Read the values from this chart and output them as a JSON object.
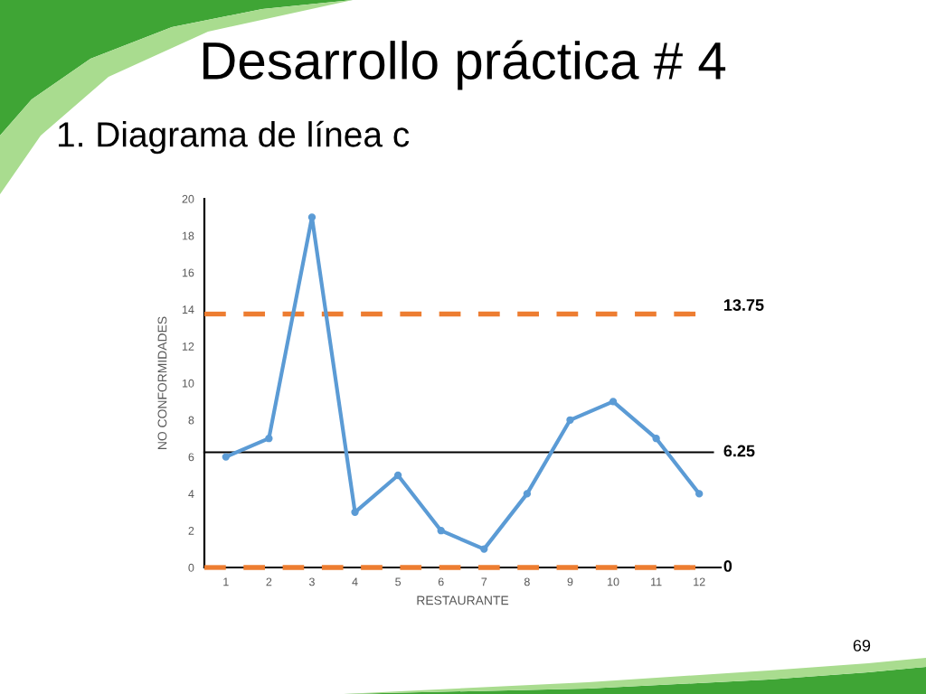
{
  "chart_data": {
    "type": "line",
    "title": "Desarrollo práctica # 4",
    "subtitle": "1. Diagrama de línea c",
    "xlabel": "RESTAURANTE",
    "ylabel": "NO CONFORMIDADES",
    "categories": [
      "1",
      "2",
      "3",
      "4",
      "5",
      "6",
      "7",
      "8",
      "9",
      "10",
      "11",
      "12"
    ],
    "series": [
      {
        "color": "#5b9bd5",
        "values": [
          6,
          7,
          19,
          3,
          5,
          2,
          1,
          4,
          8,
          9,
          7,
          4
        ]
      }
    ],
    "ylim": [
      0,
      20
    ],
    "yticks": [
      0,
      2,
      4,
      6,
      8,
      10,
      12,
      14,
      16,
      18,
      20
    ],
    "marker": "circle",
    "line_style": "solid",
    "grid": false,
    "legend": false,
    "ref_lines": [
      {
        "axis": "y",
        "value": 13.75,
        "label": "13.75",
        "color": "#ed7d31",
        "line_style": "dashed"
      },
      {
        "axis": "y",
        "value": 6.25,
        "label": "6.25",
        "color": "#000000",
        "line_style": "solid"
      },
      {
        "axis": "y",
        "value": 0,
        "label": "0",
        "color": "#ed7d31",
        "line_style": "dashed"
      }
    ],
    "annotations": [
      "69"
    ]
  }
}
